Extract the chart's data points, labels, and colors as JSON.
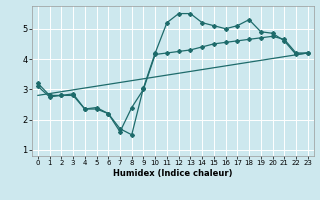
{
  "title": "",
  "xlabel": "Humidex (Indice chaleur)",
  "bg_color": "#cde8ee",
  "line_color": "#1e6b6b",
  "grid_color": "#ffffff",
  "xlim": [
    -0.5,
    23.5
  ],
  "ylim": [
    0.8,
    5.75
  ],
  "yticks": [
    1,
    2,
    3,
    4,
    5
  ],
  "xticks": [
    0,
    1,
    2,
    3,
    4,
    5,
    6,
    7,
    8,
    9,
    10,
    11,
    12,
    13,
    14,
    15,
    16,
    17,
    18,
    19,
    20,
    21,
    22,
    23
  ],
  "line1_x": [
    0,
    1,
    2,
    3,
    4,
    5,
    6,
    7,
    8,
    9,
    10,
    11,
    12,
    13,
    14,
    15,
    16,
    17,
    18,
    19,
    20,
    21,
    22,
    23
  ],
  "line1_y": [
    3.2,
    2.8,
    2.8,
    2.8,
    2.35,
    2.35,
    2.2,
    1.7,
    1.5,
    3.05,
    4.2,
    5.2,
    5.5,
    5.5,
    5.2,
    5.1,
    5.0,
    5.1,
    5.3,
    4.9,
    4.85,
    4.6,
    4.15,
    4.2
  ],
  "line2_x": [
    0,
    1,
    2,
    3,
    4,
    5,
    6,
    7,
    8,
    9,
    10,
    11,
    12,
    13,
    14,
    15,
    16,
    17,
    18,
    19,
    20,
    21,
    22,
    23
  ],
  "line2_y": [
    3.1,
    2.75,
    2.8,
    2.85,
    2.35,
    2.4,
    2.2,
    1.6,
    2.4,
    3.0,
    4.15,
    4.2,
    4.25,
    4.3,
    4.4,
    4.5,
    4.55,
    4.6,
    4.65,
    4.7,
    4.75,
    4.65,
    4.2,
    4.2
  ],
  "line3_x": [
    0,
    23
  ],
  "line3_y": [
    2.8,
    4.2
  ]
}
